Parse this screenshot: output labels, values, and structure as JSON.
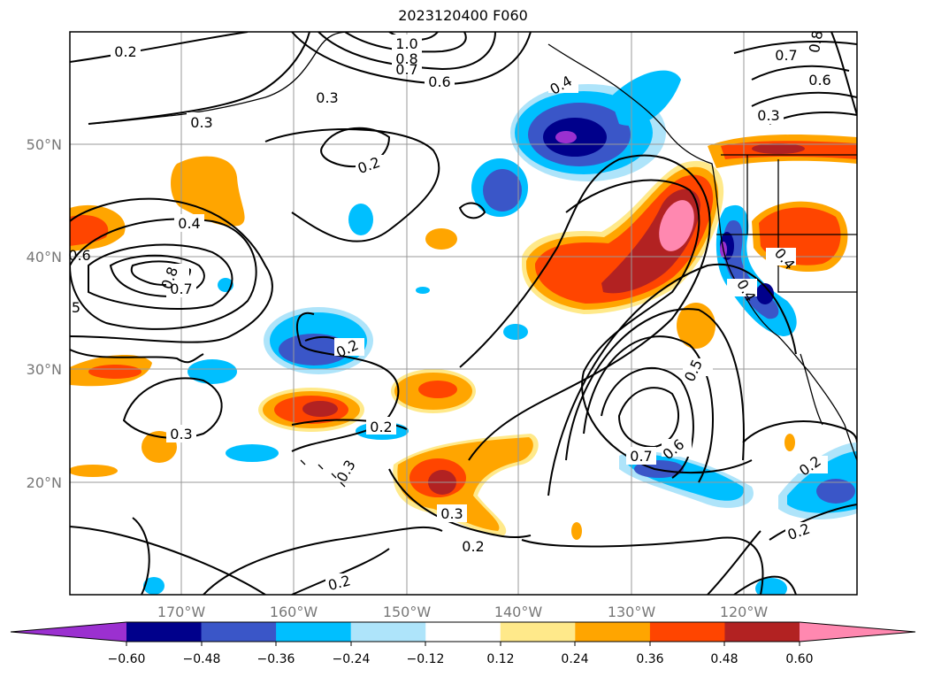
{
  "title": "2023120400 F060",
  "lat_labels": [
    "50°N",
    "40°N",
    "30°N",
    "20°N"
  ],
  "lon_labels": [
    "170°W",
    "160°W",
    "150°W",
    "140°W",
    "130°W",
    "120°W"
  ],
  "colorbar": {
    "colors": [
      "#9b30d0",
      "#00008b",
      "#3a56c8",
      "#00bfff",
      "#aee4fa",
      "#ffffff",
      "#ffe98a",
      "#ffa500",
      "#ff4500",
      "#b22222",
      "#ff88b0"
    ],
    "ticks": [
      "−0.60",
      "−0.48",
      "−0.36",
      "−0.24",
      "−0.12",
      "0.12",
      "0.24",
      "0.36",
      "0.48",
      "0.60"
    ]
  },
  "contour_labels": [
    "0.2",
    "1.0",
    "0.8",
    "0.7",
    "0.6",
    "0.3",
    "0.3",
    "0.4",
    "0.2",
    "0.4",
    "0.6",
    "0.8",
    "0.7",
    "5",
    "0.2",
    "0.3",
    "0.2",
    "0.3",
    "0.3",
    "0.2",
    "0.2",
    "0.7",
    "0.6",
    "0.5",
    "0.4",
    "0.4",
    "0.7",
    "0.6",
    "0.3",
    "0.2",
    "0.2",
    "0.8"
  ]
}
